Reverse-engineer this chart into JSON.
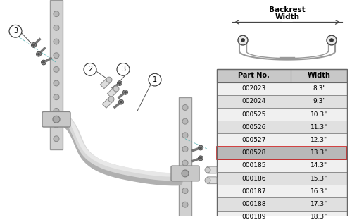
{
  "table_headers": [
    "Part No.",
    "Width"
  ],
  "table_data": [
    [
      "002023",
      "8.3°"
    ],
    [
      "002024",
      "9.3°"
    ],
    [
      "000525",
      "10.3°"
    ],
    [
      "000526",
      "11.3°"
    ],
    [
      "000527",
      "12.3°"
    ],
    [
      "000528",
      "13.3°"
    ],
    [
      "000185",
      "14.3°"
    ],
    [
      "000186",
      "15.3°"
    ],
    [
      "000187",
      "16.3°"
    ],
    [
      "000188",
      "17.3°"
    ],
    [
      "000189",
      "18.3°"
    ]
  ],
  "table_inch_symbol": "\"",
  "highlight_row": 5,
  "bg_color": "#ffffff",
  "table_header_bg": "#c8c8c8",
  "table_row_light": "#f0f0f0",
  "table_row_dark": "#e0e0e0",
  "highlight_color": "#b8b8b8",
  "border_color": "#666666",
  "highlight_border": "#cc2222",
  "backrest_label_line1": "Backrest",
  "backrest_label_line2": "Width",
  "tube_color": "#d0d0d0",
  "tube_edge": "#999999",
  "bar_color": "#d8d8d8",
  "bar_edge": "#aaaaaa",
  "screw_color": "#555555",
  "callout_bg": "#ffffff",
  "callout_edge": "#333333",
  "leader_color": "#555555",
  "dim_color": "#444444"
}
